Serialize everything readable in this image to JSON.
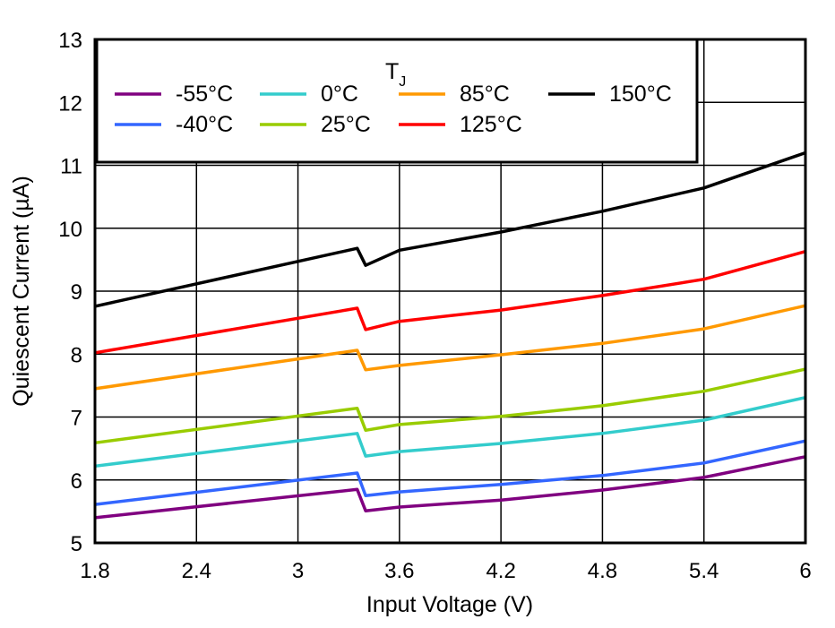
{
  "chart_data": {
    "type": "line",
    "title": "",
    "xlabel": "Input Voltage (V)",
    "ylabel": "Quiescent Current (µA)",
    "xlim": [
      1.8,
      6
    ],
    "ylim": [
      5,
      13
    ],
    "xticks": [
      "1.8",
      "2.4",
      "3",
      "3.6",
      "4.2",
      "4.8",
      "5.4",
      "6"
    ],
    "yticks": [
      "5",
      "6",
      "7",
      "8",
      "9",
      "10",
      "11",
      "12",
      "13"
    ],
    "grid": true,
    "legend": {
      "title": "T",
      "title_sub": "J",
      "placement": "top-left"
    },
    "x": [
      1.8,
      3.35,
      3.4,
      3.6,
      4.2,
      4.8,
      5.4,
      6.0
    ],
    "series": [
      {
        "name": "-55°C",
        "color": "#800080",
        "values": [
          5.4,
          5.85,
          5.51,
          5.57,
          5.68,
          5.84,
          6.04,
          6.37
        ]
      },
      {
        "name": "-40°C",
        "color": "#3366ff",
        "values": [
          5.61,
          6.11,
          5.75,
          5.81,
          5.93,
          6.07,
          6.27,
          6.62
        ]
      },
      {
        "name": "0°C",
        "color": "#33cccc",
        "values": [
          6.22,
          6.74,
          6.38,
          6.45,
          6.58,
          6.74,
          6.95,
          7.31
        ]
      },
      {
        "name": "25°C",
        "color": "#99cc00",
        "values": [
          6.59,
          7.14,
          6.79,
          6.88,
          7.01,
          7.18,
          7.41,
          7.76
        ]
      },
      {
        "name": "85°C",
        "color": "#ff9900",
        "values": [
          7.45,
          8.06,
          7.75,
          7.82,
          7.99,
          8.17,
          8.4,
          8.77
        ]
      },
      {
        "name": "125°C",
        "color": "#ff0000",
        "values": [
          8.02,
          8.73,
          8.39,
          8.52,
          8.7,
          8.93,
          9.19,
          9.63
        ]
      },
      {
        "name": "150°C",
        "color": "#000000",
        "values": [
          8.76,
          9.68,
          9.41,
          9.65,
          9.94,
          10.27,
          10.64,
          11.2
        ]
      }
    ]
  }
}
